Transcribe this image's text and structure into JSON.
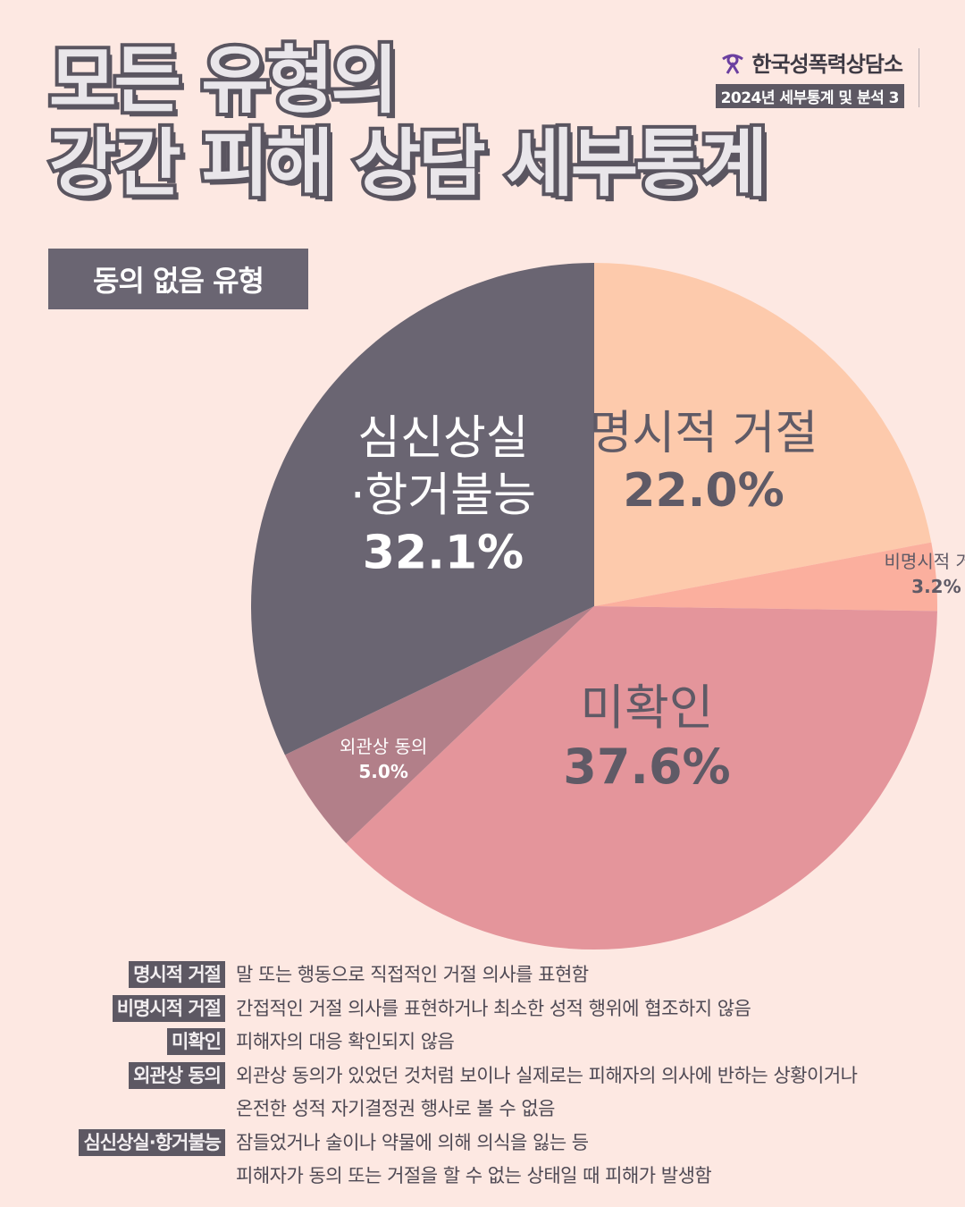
{
  "header": {
    "title_line1": "모든 유형의",
    "title_line2": "강간 피해 상담 세부통계",
    "org_name": "한국성폭력상담소",
    "org_subtitle": "2024년 세부통계 및 분석 3"
  },
  "section_badge": "동의 없음 유형",
  "colors": {
    "background": "#fde8e2",
    "explicit": "#fdcaac",
    "implicit": "#fbaf9e",
    "unconfirmed": "#e4959b",
    "apparent": "#b27f89",
    "incapacitated": "#6a6572"
  },
  "chart_data": {
    "type": "pie",
    "slices": [
      {
        "label": "명시적 거절",
        "value": 22.0,
        "value_label": "22.0%"
      },
      {
        "label": "비명시적 거절",
        "value": 3.2,
        "value_label": "3.2%"
      },
      {
        "label": "미확인",
        "value": 37.6,
        "value_label": "37.6%"
      },
      {
        "label": "외관상 동의",
        "value": 5.0,
        "value_label": "5.0%"
      },
      {
        "label": "심신상실·항거불능",
        "value": 32.1,
        "value_label": "32.1%"
      }
    ]
  },
  "legend": [
    {
      "term": "명시적 거절",
      "desc": [
        "말 또는 행동으로 직접적인 거절 의사를 표현함"
      ]
    },
    {
      "term": "비명시적 거절",
      "desc": [
        "간접적인 거절 의사를 표현하거나 최소한 성적 행위에 협조하지 않음"
      ]
    },
    {
      "term": "미확인",
      "desc": [
        "피해자의 대응 확인되지 않음"
      ]
    },
    {
      "term": "외관상 동의",
      "desc": [
        "외관상 동의가 있었던 것처럼 보이나 실제로는 피해자의 의사에 반하는 상황이거나",
        "온전한 성적 자기결정권 행사로 볼 수 없음"
      ]
    },
    {
      "term": "심신상실·항거불능",
      "desc": [
        "잠들었거나 술이나 약물에 의해 의식을 잃는 등",
        "피해자가 동의 또는 거절을 할 수 없는 상태일 때 피해가 발생함"
      ]
    }
  ]
}
